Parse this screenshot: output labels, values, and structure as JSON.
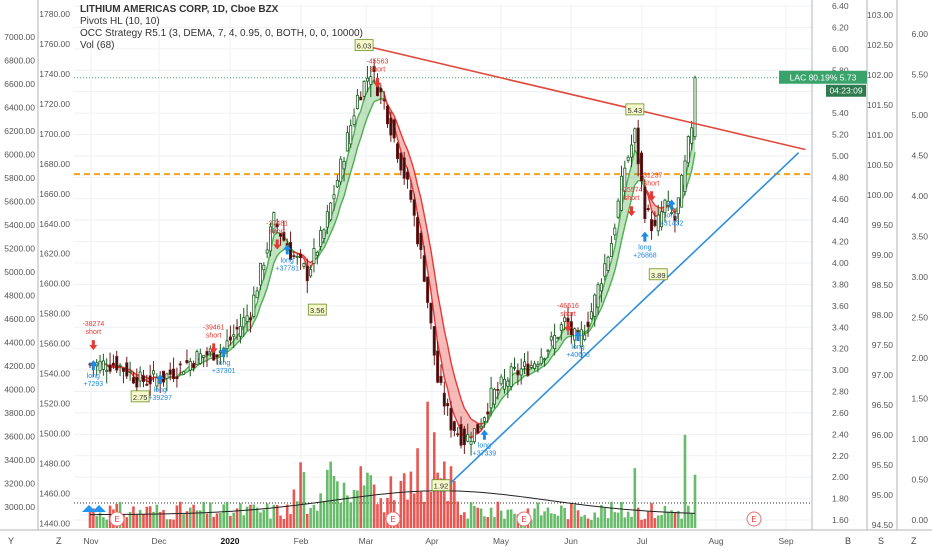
{
  "legend": {
    "title": "LITHIUM AMERICAS CORP, 1D, Cboe BZX",
    "pivots": "Pivots HL (10, 10)",
    "strategy": "OCC Strategy R5.1 (3, DEMA, 7, 4, 0.95, 0, BOTH, 0, 0, 10000)",
    "vol": "Vol (68)"
  },
  "price_tag": {
    "label": "LAC 80.19% 5.73",
    "timer": "04:23:09"
  },
  "colors": {
    "up": "#4caf50",
    "down": "#e53935",
    "trend_red": "#e04a3f",
    "trend_blue": "#2f8fdd",
    "hline": "#f5a21b",
    "tag": "#3aa36c",
    "signal_long": "#1e88e5",
    "signal_short": "#e53935"
  },
  "icons": [
    "tradingview-logo-icon",
    "earnings-e-icon",
    "settings-gear-icon"
  ],
  "bottom_bar": {
    "left": [
      "Y",
      "Z"
    ],
    "right": [
      "B",
      "S",
      "Z"
    ]
  },
  "chart_data": {
    "type": "candlestick",
    "title": "LITHIUM AMERICAS CORP, 1D, Cboe BZX",
    "x_ticks": [
      "Nov",
      "Dec",
      "2020",
      "Feb",
      "Mar",
      "Apr",
      "May",
      "Jun",
      "Jul",
      "Aug",
      "Sep"
    ],
    "far_left_axis_ticks": [
      "7000.00",
      "6800.00",
      "6600.00",
      "6400.00",
      "6200.00",
      "6000.00",
      "5800.00",
      "5600.00",
      "5400.00",
      "5200.00",
      "5000.00",
      "4800.00",
      "4600.00",
      "4400.00",
      "4200.00",
      "4000.00",
      "3800.00",
      "3600.00",
      "3400.00",
      "3200.00",
      "3000.00"
    ],
    "left_axis_ticks": [
      "1780.00",
      "1760.00",
      "1740.00",
      "1720.00",
      "1700.00",
      "1680.00",
      "1660.00",
      "1640.00",
      "1620.00",
      "1600.00",
      "1580.00",
      "1560.00",
      "1540.00",
      "1520.00",
      "1500.00",
      "1480.00",
      "1460.00",
      "1440.00"
    ],
    "price_axis_ticks": [
      "6.40",
      "6.20",
      "6.00",
      "5.80",
      "5.60",
      "5.40",
      "5.20",
      "5.00",
      "4.80",
      "4.60",
      "4.40",
      "4.20",
      "4.00",
      "3.80",
      "3.60",
      "3.40",
      "3.20",
      "3.00",
      "2.80",
      "2.60",
      "2.40",
      "2.20",
      "2.00",
      "1.80",
      "1.60"
    ],
    "right_axis_ticks": [
      "103.00",
      "102.50",
      "102.00",
      "101.50",
      "101.00",
      "100.50",
      "100.00",
      "99.50",
      "99.00",
      "98.50",
      "98.00",
      "97.50",
      "97.00",
      "96.50",
      "96.00",
      "95.50",
      "95.00",
      "94.50"
    ],
    "far_right_axis_ticks": [
      "6.00",
      "5.50",
      "5.00",
      "4.50",
      "4.00",
      "3.50",
      "3.00",
      "2.50",
      "2.00",
      "1.50",
      "1.00",
      "0.50",
      "0.00"
    ],
    "ylim": [
      1.5,
      6.5
    ],
    "last_price": 5.73,
    "hline_level": 4.83,
    "pivot_labels": [
      {
        "text": "2.75",
        "x": 15,
        "y": 2.75
      },
      {
        "text": "6.03",
        "x": 82,
        "y": 6.03
      },
      {
        "text": "3.56",
        "x": 68,
        "y": 3.56
      },
      {
        "text": "1.92",
        "x": 105,
        "y": 1.92
      },
      {
        "text": "5.43",
        "x": 163,
        "y": 5.43
      },
      {
        "text": "3.89",
        "x": 170,
        "y": 3.89
      }
    ],
    "signals": [
      {
        "type": "short",
        "text": "-38274 short",
        "x": 1,
        "y": 3.28
      },
      {
        "type": "long",
        "text": "long +7293",
        "x": 1,
        "y": 3.0
      },
      {
        "type": "long",
        "text": "long +39297",
        "x": 21,
        "y": 2.87
      },
      {
        "type": "short",
        "text": "-39461 short",
        "x": 37,
        "y": 3.25
      },
      {
        "type": "long",
        "text": "long +37301",
        "x": 40,
        "y": 3.12
      },
      {
        "type": "short",
        "text": "-37481 short",
        "x": 56,
        "y": 4.22
      },
      {
        "type": "long",
        "text": "long +37781",
        "x": 59,
        "y": 4.08
      },
      {
        "type": "short",
        "text": "-45563 short",
        "x": 86,
        "y": 5.73
      },
      {
        "type": "long",
        "text": "long +37339",
        "x": 118,
        "y": 2.35
      },
      {
        "type": "short",
        "text": "-46616 short",
        "x": 143,
        "y": 3.45
      },
      {
        "type": "long",
        "text": "long +40606",
        "x": 146,
        "y": 3.27
      },
      {
        "type": "short",
        "text": "-31237 short",
        "x": 168,
        "y": 4.67
      },
      {
        "type": "short",
        "text": "-25574 short",
        "x": 162,
        "y": 4.53
      },
      {
        "type": "long",
        "text": "long +26868",
        "x": 166,
        "y": 4.2
      },
      {
        "type": "long",
        "text": "long +31432",
        "x": 174,
        "y": 4.5
      }
    ],
    "anchors": [
      {
        "x": 0,
        "y": 3.05
      },
      {
        "x": 8,
        "y": 3.06
      },
      {
        "x": 15,
        "y": 2.9
      },
      {
        "x": 22,
        "y": 2.93
      },
      {
        "x": 32,
        "y": 3.12
      },
      {
        "x": 40,
        "y": 3.2
      },
      {
        "x": 48,
        "y": 3.55
      },
      {
        "x": 55,
        "y": 4.4
      },
      {
        "x": 60,
        "y": 4.1
      },
      {
        "x": 65,
        "y": 3.9
      },
      {
        "x": 70,
        "y": 4.3
      },
      {
        "x": 75,
        "y": 4.9
      },
      {
        "x": 80,
        "y": 5.55
      },
      {
        "x": 84,
        "y": 5.8
      },
      {
        "x": 88,
        "y": 5.5
      },
      {
        "x": 92,
        "y": 5.05
      },
      {
        "x": 96,
        "y": 4.6
      },
      {
        "x": 100,
        "y": 3.9
      },
      {
        "x": 104,
        "y": 2.9
      },
      {
        "x": 108,
        "y": 2.5
      },
      {
        "x": 112,
        "y": 2.35
      },
      {
        "x": 116,
        "y": 2.45
      },
      {
        "x": 120,
        "y": 2.75
      },
      {
        "x": 126,
        "y": 2.95
      },
      {
        "x": 132,
        "y": 3.05
      },
      {
        "x": 138,
        "y": 3.25
      },
      {
        "x": 142,
        "y": 3.45
      },
      {
        "x": 146,
        "y": 3.25
      },
      {
        "x": 150,
        "y": 3.55
      },
      {
        "x": 156,
        "y": 4.2
      },
      {
        "x": 160,
        "y": 4.9
      },
      {
        "x": 163,
        "y": 5.2
      },
      {
        "x": 166,
        "y": 4.5
      },
      {
        "x": 169,
        "y": 4.3
      },
      {
        "x": 172,
        "y": 4.55
      },
      {
        "x": 175,
        "y": 4.4
      },
      {
        "x": 178,
        "y": 4.9
      },
      {
        "x": 180,
        "y": 5.3
      },
      {
        "x": 181,
        "y": 5.73
      }
    ],
    "trendlines": [
      {
        "color": "red",
        "from": {
          "x": 82,
          "y": 6.03
        },
        "to": {
          "x": 214,
          "y": 5.06
        }
      },
      {
        "color": "blue",
        "from": {
          "x": 105,
          "y": 1.86
        },
        "to": {
          "x": 212,
          "y": 5.03
        }
      }
    ],
    "volume_ylim": [
      0,
      100
    ]
  }
}
